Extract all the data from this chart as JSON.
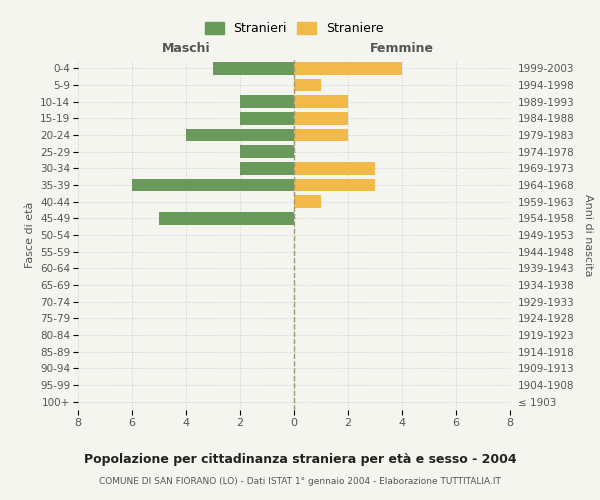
{
  "age_groups": [
    "100+",
    "95-99",
    "90-94",
    "85-89",
    "80-84",
    "75-79",
    "70-74",
    "65-69",
    "60-64",
    "55-59",
    "50-54",
    "45-49",
    "40-44",
    "35-39",
    "30-34",
    "25-29",
    "20-24",
    "15-19",
    "10-14",
    "5-9",
    "0-4"
  ],
  "birth_years": [
    "≤ 1903",
    "1904-1908",
    "1909-1913",
    "1914-1918",
    "1919-1923",
    "1924-1928",
    "1929-1933",
    "1934-1938",
    "1939-1943",
    "1944-1948",
    "1949-1953",
    "1954-1958",
    "1959-1963",
    "1964-1968",
    "1969-1973",
    "1974-1978",
    "1979-1983",
    "1984-1988",
    "1989-1993",
    "1994-1998",
    "1999-2003"
  ],
  "males": [
    0,
    0,
    0,
    0,
    0,
    0,
    0,
    0,
    0,
    0,
    0,
    5,
    0,
    6,
    2,
    2,
    4,
    2,
    2,
    0,
    3
  ],
  "females": [
    0,
    0,
    0,
    0,
    0,
    0,
    0,
    0,
    0,
    0,
    0,
    0,
    1,
    3,
    3,
    0,
    2,
    2,
    2,
    1,
    4
  ],
  "male_color": "#6a9a5b",
  "female_color": "#f0b94a",
  "background_color": "#f5f5f0",
  "grid_color": "#cccccc",
  "center_line_color": "#999977",
  "title": "Popolazione per cittadinanza straniera per età e sesso - 2004",
  "subtitle": "COMUNE DI SAN FIORANO (LO) - Dati ISTAT 1° gennaio 2004 - Elaborazione TUTTITALIA.IT",
  "xlabel_left": "Maschi",
  "xlabel_right": "Femmine",
  "ylabel_left": "Fasce di età",
  "ylabel_right": "Anni di nascita",
  "legend_male": "Stranieri",
  "legend_female": "Straniere",
  "xlim": 8,
  "bar_height": 0.75
}
